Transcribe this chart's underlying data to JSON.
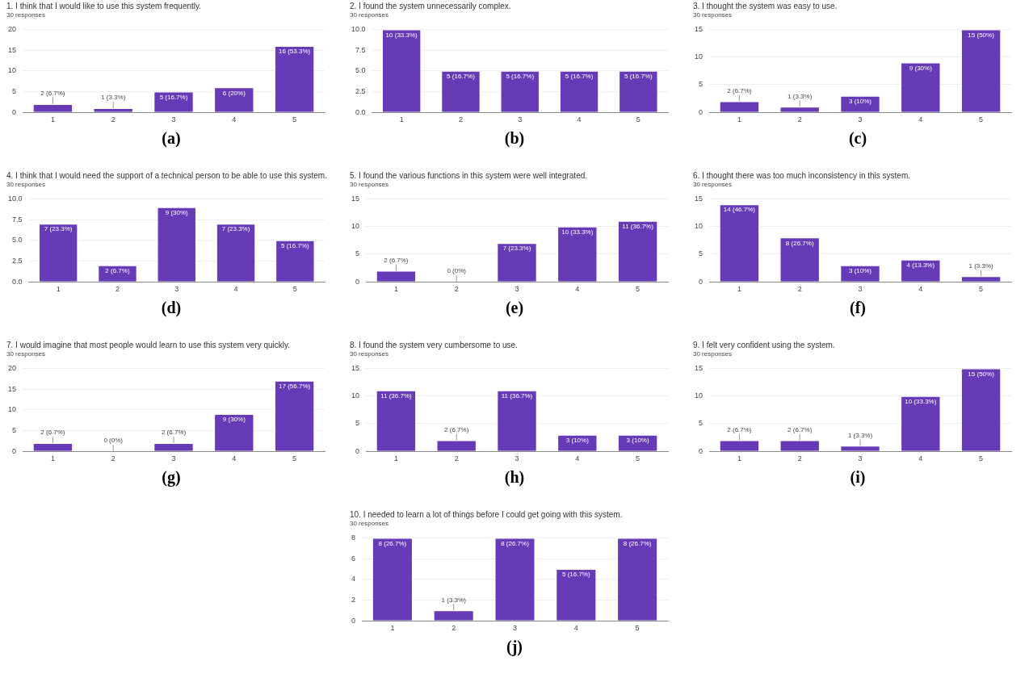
{
  "chart_data": [
    {
      "type": "bar",
      "title": "1.  I think that I would like to use this system frequently.",
      "subtitle": "30 responses",
      "categories": [
        "1",
        "2",
        "3",
        "4",
        "5"
      ],
      "values": [
        2,
        1,
        5,
        6,
        16
      ],
      "value_labels": [
        "2 (6.7%)",
        "1 (3.3%)",
        "5 (16.7%)",
        "6 (20%)",
        "16 (53.3%)"
      ],
      "color": "#673ab7",
      "ylim": [
        0,
        20
      ],
      "yticks": [
        0,
        5,
        10,
        15,
        20
      ],
      "grid": "y",
      "annotations": [
        "(a)"
      ]
    },
    {
      "type": "bar",
      "title": "2.  I found the system unnecessarily complex.",
      "subtitle": "30 responses",
      "categories": [
        "1",
        "2",
        "3",
        "4",
        "5"
      ],
      "values": [
        10,
        5,
        5,
        5,
        5
      ],
      "value_labels": [
        "10 (33.3%)",
        "5 (16.7%)",
        "5 (16.7%)",
        "5 (16.7%)",
        "5 (16.7%)"
      ],
      "color": "#673ab7",
      "ylim": [
        0,
        10
      ],
      "yticks": [
        {
          "value": 0,
          "label": "0.0"
        },
        {
          "value": 2.5,
          "label": "2.5"
        },
        {
          "value": 5,
          "label": "5.0"
        },
        {
          "value": 7.5,
          "label": "7.5"
        },
        {
          "value": 10,
          "label": "10.0"
        }
      ],
      "grid": "y",
      "annotations": [
        "(b)"
      ]
    },
    {
      "type": "bar",
      "title": "3. I thought the system was easy to use.",
      "subtitle": "30 responses",
      "categories": [
        "1",
        "2",
        "3",
        "4",
        "5"
      ],
      "values": [
        2,
        1,
        3,
        9,
        15
      ],
      "value_labels": [
        "2 (6.7%)",
        "1 (3.3%)",
        "3 (10%)",
        "9 (30%)",
        "15 (50%)"
      ],
      "color": "#673ab7",
      "ylim": [
        0,
        15
      ],
      "yticks": [
        0,
        5,
        10,
        15
      ],
      "grid": "y",
      "annotations": [
        "(c)"
      ]
    },
    {
      "type": "bar",
      "title": "4. I think that I would need the support of a technical person to be able to use this system.",
      "subtitle": "30 responses",
      "categories": [
        "1",
        "2",
        "3",
        "4",
        "5"
      ],
      "values": [
        7,
        2,
        9,
        7,
        5
      ],
      "value_labels": [
        "7 (23.3%)",
        "2 (6.7%)",
        "9 (30%)",
        "7 (23.3%)",
        "5 (16.7%)"
      ],
      "color": "#673ab7",
      "ylim": [
        0,
        10
      ],
      "yticks": [
        {
          "value": 0,
          "label": "0.0"
        },
        {
          "value": 2.5,
          "label": "2.5"
        },
        {
          "value": 5,
          "label": "5.0"
        },
        {
          "value": 7.5,
          "label": "7.5"
        },
        {
          "value": 10,
          "label": "10.0"
        }
      ],
      "grid": "y",
      "annotations": [
        "(d)"
      ]
    },
    {
      "type": "bar",
      "title": "5. I found the various functions in this system were well integrated.",
      "subtitle": "30 responses",
      "categories": [
        "1",
        "2",
        "3",
        "4",
        "5"
      ],
      "values": [
        2,
        0,
        7,
        10,
        11
      ],
      "value_labels": [
        "2 (6.7%)",
        "0 (0%)",
        "7 (23.3%)",
        "10 (33.3%)",
        "11 (36.7%)"
      ],
      "color": "#673ab7",
      "ylim": [
        0,
        15
      ],
      "yticks": [
        0,
        5,
        10,
        15
      ],
      "grid": "y",
      "annotations": [
        "(e)"
      ]
    },
    {
      "type": "bar",
      "title": "6. I thought there was too much inconsistency in this system.",
      "subtitle": "30 responses",
      "categories": [
        "1",
        "2",
        "3",
        "4",
        "5"
      ],
      "values": [
        14,
        8,
        3,
        4,
        1
      ],
      "value_labels": [
        "14 (46.7%)",
        "8 (26.7%)",
        "3 (10%)",
        "4 (13.3%)",
        "1 (3.3%)"
      ],
      "color": "#673ab7",
      "ylim": [
        0,
        15
      ],
      "yticks": [
        0,
        5,
        10,
        15
      ],
      "grid": "y",
      "annotations": [
        "(f)"
      ]
    },
    {
      "type": "bar",
      "title": "7.  I would imagine that most people would learn to use this system very quickly.",
      "subtitle": "30 responses",
      "categories": [
        "1",
        "2",
        "3",
        "4",
        "5"
      ],
      "values": [
        2,
        0,
        2,
        9,
        17
      ],
      "value_labels": [
        "2 (6.7%)",
        "0 (0%)",
        "2 (6.7%)",
        "9 (30%)",
        "17 (56.7%)"
      ],
      "color": "#673ab7",
      "ylim": [
        0,
        20
      ],
      "yticks": [
        0,
        5,
        10,
        15,
        20
      ],
      "grid": "y",
      "annotations": [
        "(g)"
      ]
    },
    {
      "type": "bar",
      "title": "8. I found the system very cumbersome to use.",
      "subtitle": "30 responses",
      "categories": [
        "1",
        "2",
        "3",
        "4",
        "5"
      ],
      "values": [
        11,
        2,
        11,
        3,
        3
      ],
      "value_labels": [
        "11 (36.7%)",
        "2 (6.7%)",
        "11 (36.7%)",
        "3 (10%)",
        "3 (10%)"
      ],
      "color": "#673ab7",
      "ylim": [
        0,
        15
      ],
      "yticks": [
        0,
        5,
        10,
        15
      ],
      "grid": "y",
      "annotations": [
        "(h)"
      ]
    },
    {
      "type": "bar",
      "title": "9.  I felt very confident using the system.",
      "subtitle": "30 responses",
      "categories": [
        "1",
        "2",
        "3",
        "4",
        "5"
      ],
      "values": [
        2,
        2,
        1,
        10,
        15
      ],
      "value_labels": [
        "2 (6.7%)",
        "2 (6.7%)",
        "1 (3.3%)",
        "10 (33.3%)",
        "15 (50%)"
      ],
      "color": "#673ab7",
      "ylim": [
        0,
        15
      ],
      "yticks": [
        0,
        5,
        10,
        15
      ],
      "grid": "y",
      "annotations": [
        "(i)"
      ]
    },
    {
      "type": "bar",
      "title": "10.  I needed to learn a lot of things before I could get going with this system.",
      "subtitle": "30 responses",
      "categories": [
        "1",
        "2",
        "3",
        "4",
        "5"
      ],
      "values": [
        8,
        1,
        8,
        5,
        8
      ],
      "value_labels": [
        "8 (26.7%)",
        "1 (3.3%)",
        "8 (26.7%)",
        "5 (16.7%)",
        "8 (26.7%)"
      ],
      "color": "#673ab7",
      "ylim": [
        0,
        8
      ],
      "yticks": [
        0,
        2,
        4,
        6,
        8
      ],
      "grid": "y",
      "annotations": [
        "(j)"
      ]
    }
  ]
}
